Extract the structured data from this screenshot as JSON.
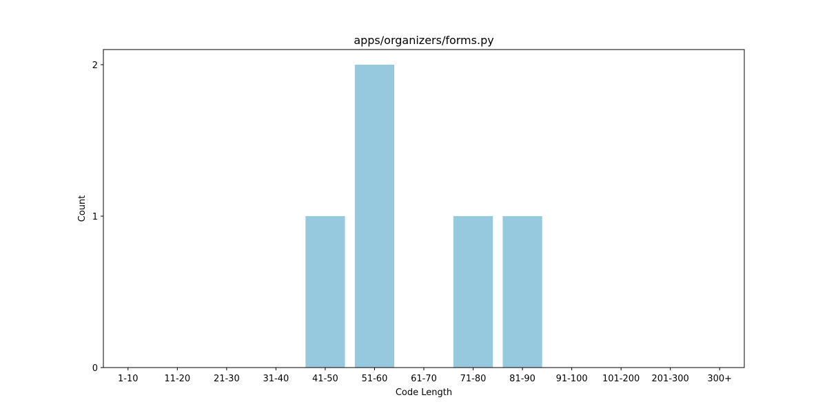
{
  "chart_data": {
    "type": "bar",
    "title": "apps/organizers/forms.py",
    "xlabel": "Code Length",
    "ylabel": "Count",
    "categories": [
      "1-10",
      "11-20",
      "21-30",
      "31-40",
      "41-50",
      "51-60",
      "61-70",
      "71-80",
      "81-90",
      "91-100",
      "101-200",
      "201-300",
      "300+"
    ],
    "values": [
      0,
      0,
      0,
      0,
      1,
      2,
      0,
      1,
      1,
      0,
      0,
      0,
      0
    ],
    "ylim": [
      0,
      2.1
    ],
    "yticks": [
      0,
      1,
      2
    ],
    "grid": false,
    "legend": "none",
    "bar_color": "#96c9de"
  }
}
